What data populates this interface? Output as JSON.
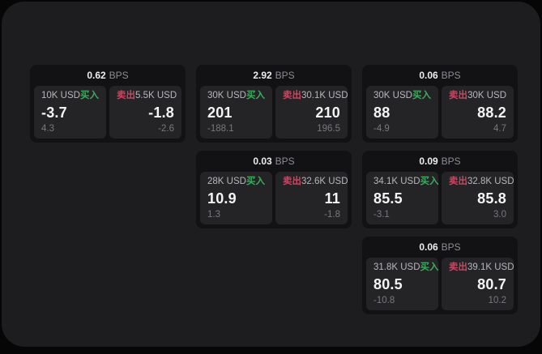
{
  "labels": {
    "bps": "BPS",
    "buy": "买入",
    "sell": "卖出"
  },
  "colors": {
    "buy": "#3dab5d",
    "sell": "#c44a62",
    "panel": "#1d1d1f",
    "card": "#121214",
    "tile": "#242427",
    "price_text": "#f4f4f5",
    "muted_text": "#78787d"
  },
  "cards": [
    {
      "spread": "0.62",
      "buy": {
        "amount": "10K USD",
        "price": "-3.7",
        "delta": "4.3"
      },
      "sell": {
        "amount": "5.5K USD",
        "price": "-1.8",
        "delta": "-2.6"
      }
    },
    {
      "spread": "2.92",
      "buy": {
        "amount": "30K USD",
        "price": "201",
        "delta": "-188.1"
      },
      "sell": {
        "amount": "30.1K USD",
        "price": "210",
        "delta": "196.5"
      }
    },
    {
      "spread": "0.06",
      "buy": {
        "amount": "30K USD",
        "price": "88",
        "delta": "-4.9"
      },
      "sell": {
        "amount": "30K USD",
        "price": "88.2",
        "delta": "4.7"
      }
    },
    {
      "spread": "0.03",
      "buy": {
        "amount": "28K USD",
        "price": "10.9",
        "delta": "1.3"
      },
      "sell": {
        "amount": "32.6K USD",
        "price": "11",
        "delta": "-1.8"
      }
    },
    {
      "spread": "0.09",
      "buy": {
        "amount": "34.1K USD",
        "price": "85.5",
        "delta": "-3.1"
      },
      "sell": {
        "amount": "32.8K USD",
        "price": "85.8",
        "delta": "3.0"
      }
    },
    {
      "spread": "0.06",
      "buy": {
        "amount": "31.8K USD",
        "price": "80.5",
        "delta": "-10.8"
      },
      "sell": {
        "amount": "39.1K USD",
        "price": "80.7",
        "delta": "10.2"
      }
    }
  ]
}
